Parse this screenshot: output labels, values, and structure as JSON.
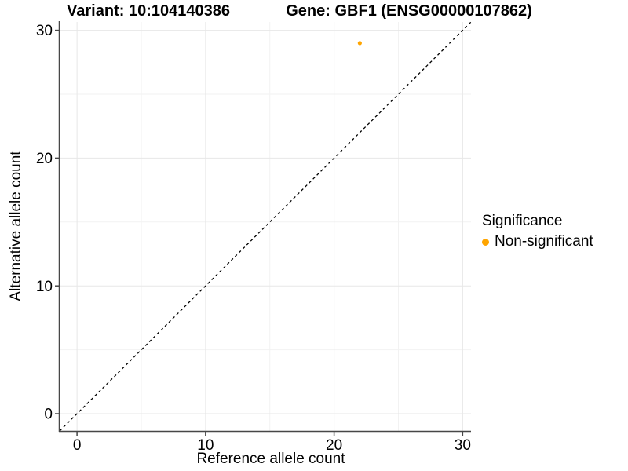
{
  "titles": {
    "left": "Variant: 10:104140386",
    "right": "Gene: GBF1 (ENSG00000107862)"
  },
  "chart_data": {
    "type": "scatter",
    "title_left": "Variant: 10:104140386",
    "title_right": "Gene: GBF1 (ENSG00000107862)",
    "xlabel": "Reference allele count",
    "ylabel": "Alternative allele count",
    "xlim": [
      -1.35,
      30.65
    ],
    "ylim": [
      -1.35,
      30.65
    ],
    "x_ticks": [
      0,
      10,
      20,
      30
    ],
    "y_ticks": [
      0,
      10,
      20,
      30
    ],
    "x_minor_ticks": [
      5,
      15,
      25
    ],
    "y_minor_ticks": [
      5,
      15,
      25
    ],
    "grid": true,
    "points": [
      {
        "x": 22,
        "y": 29,
        "series": "Non-significant",
        "color": "#FFA500"
      }
    ],
    "reference_line": {
      "type": "identity",
      "style": "dashed",
      "color": "#000000"
    },
    "legend": {
      "title": "Significance",
      "position": "right",
      "entries": [
        {
          "label": "Non-significant",
          "color": "#FFA500"
        }
      ]
    },
    "colors": {
      "grid_major": "#e7e7e7",
      "grid_minor": "#f2f2f2",
      "axis_line": "#474747",
      "tick_mark": "#474747",
      "text": "#000000",
      "background": "#ffffff"
    }
  }
}
